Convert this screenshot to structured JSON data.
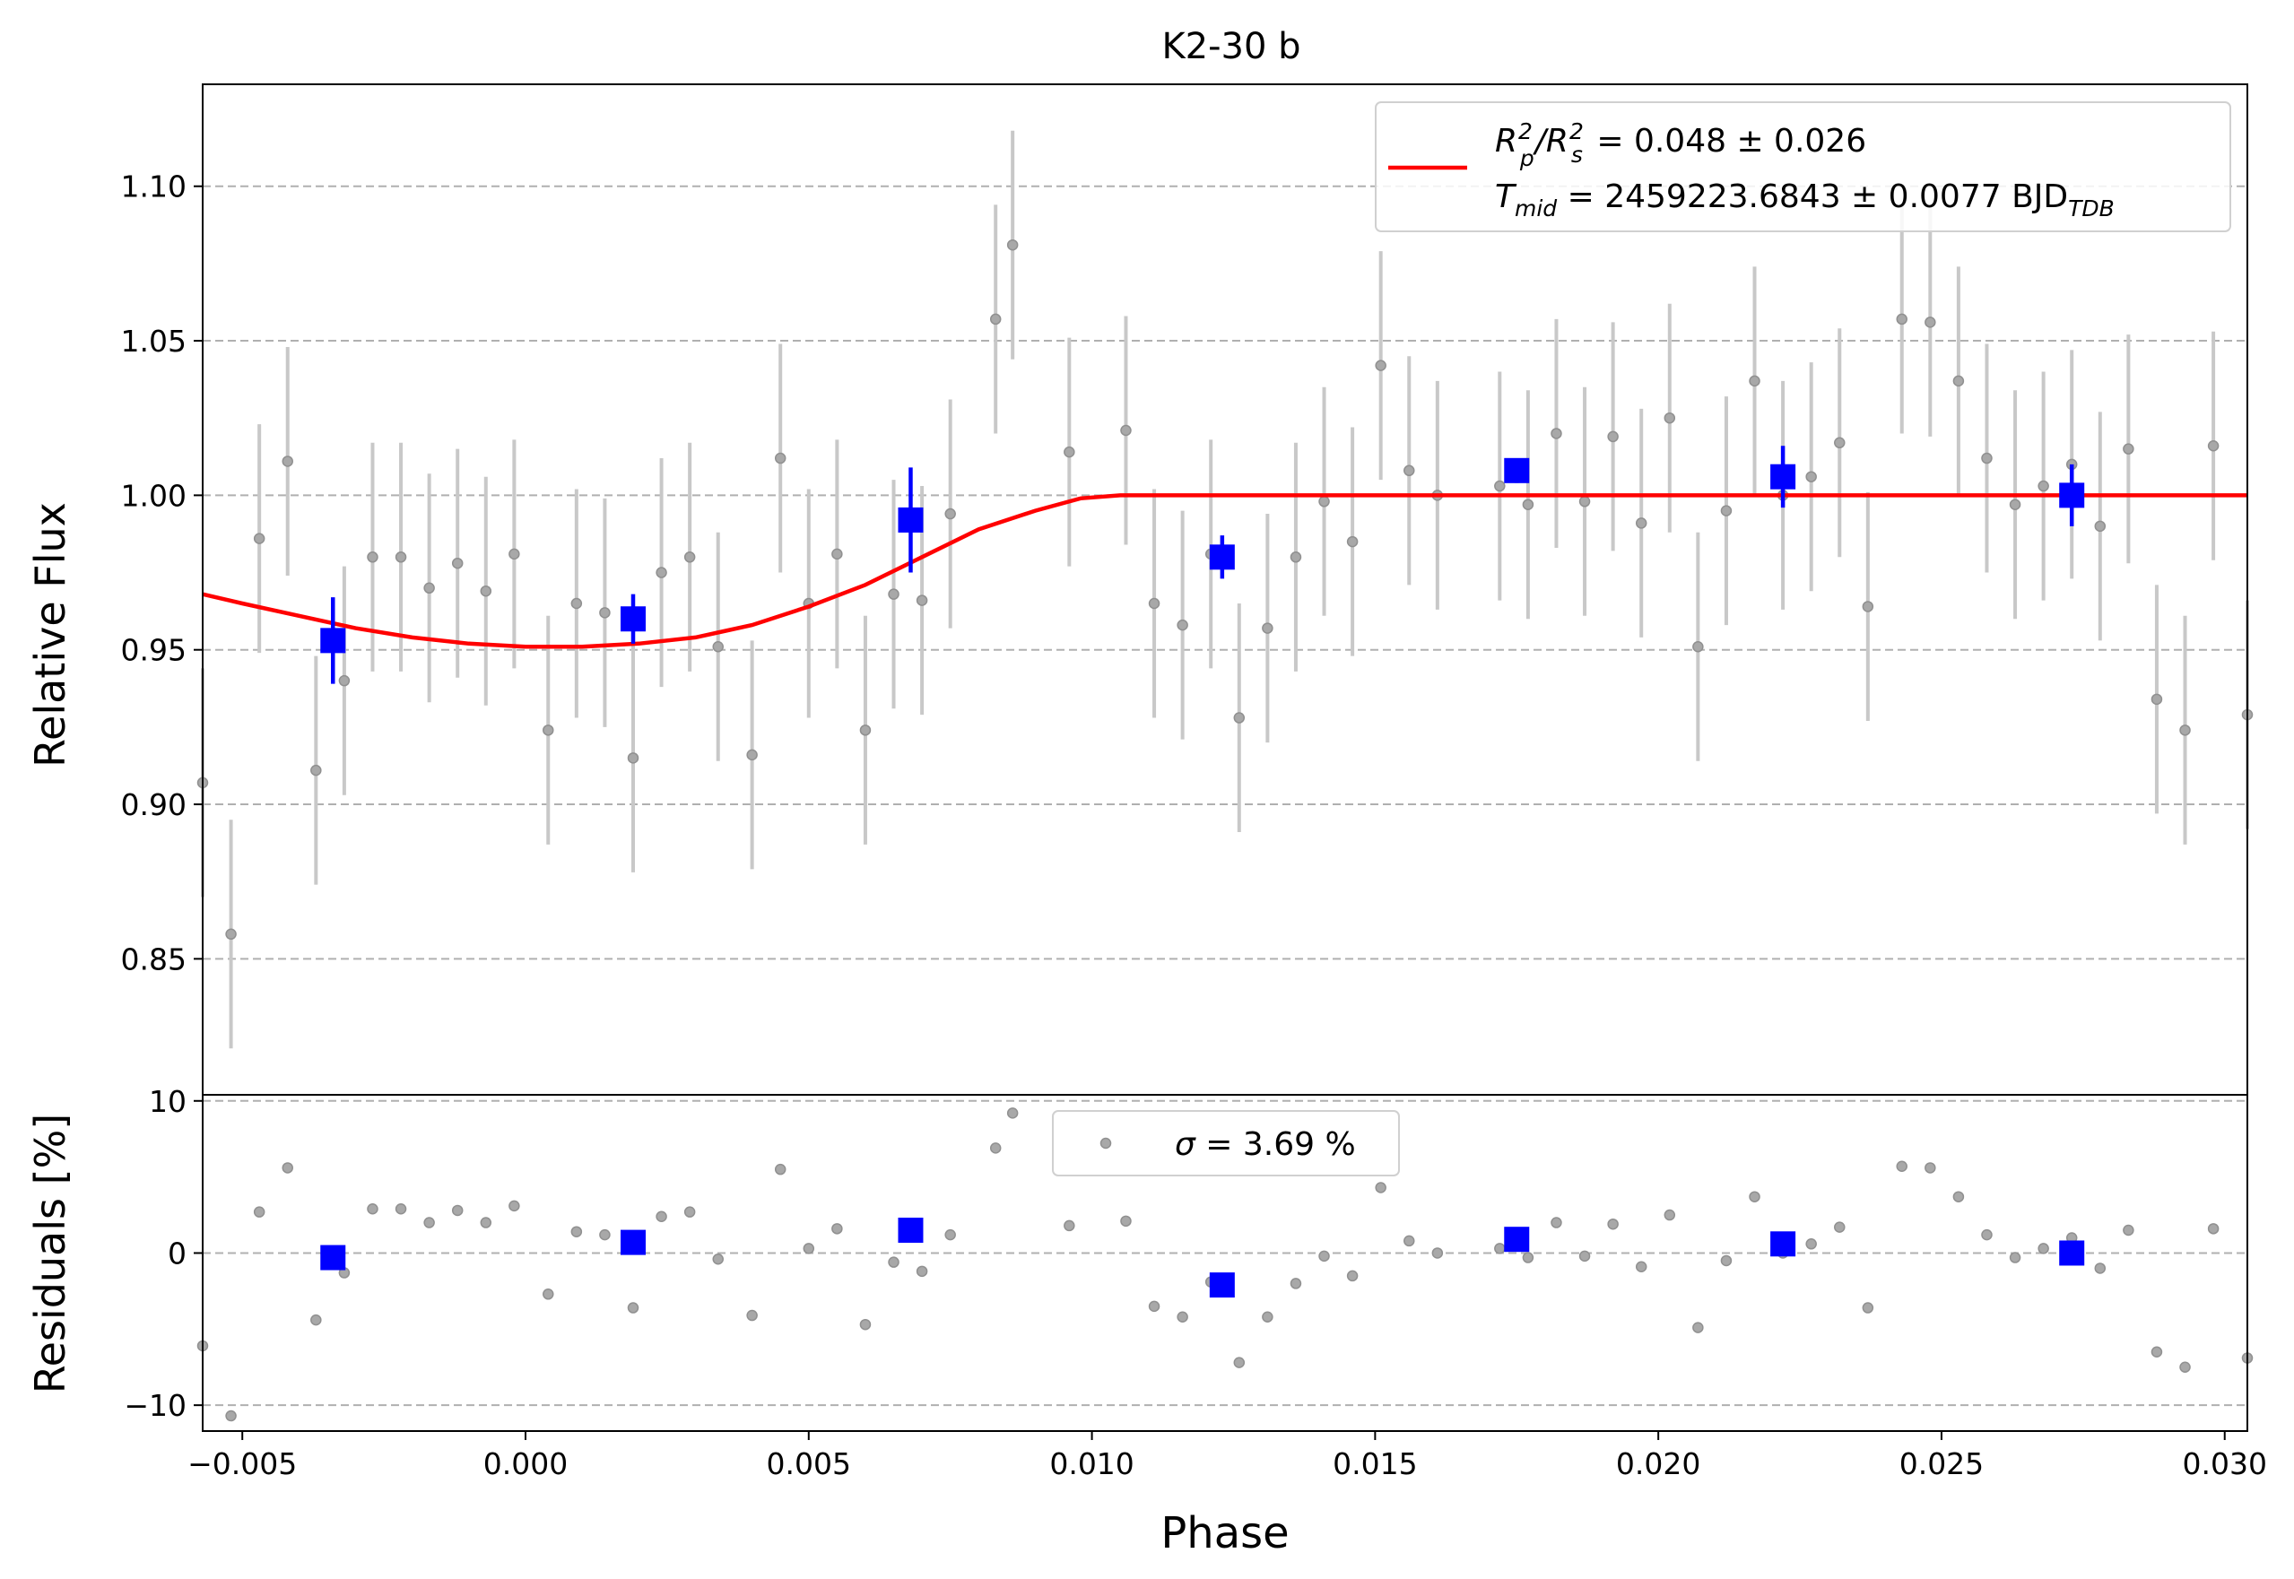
{
  "chart_data": [
    {
      "type": "scatter",
      "title": "K2-30 b",
      "xlabel": "",
      "ylabel": "Relative Flux",
      "xlim": [
        -0.0057,
        0.0304
      ],
      "ylim": [
        0.806,
        1.133
      ],
      "yticks": [
        0.85,
        0.9,
        0.95,
        1.0,
        1.05,
        1.1
      ],
      "ytick_labels": [
        "0.85",
        "0.90",
        "0.95",
        "1.00",
        "1.05",
        "1.10"
      ],
      "grid": "horizontal dashed",
      "legend_placement": "upper right",
      "legend": {
        "line1_parts": [
          "R",
          "p",
          "2",
          "/R",
          "s",
          "2",
          " = 0.048 ± 0.026"
        ],
        "line2_parts": [
          "T",
          "mid",
          " = 2459223.6843 ± 0.0077 BJD",
          "TDB"
        ]
      },
      "series": [
        {
          "kind": "data",
          "color": "#808080",
          "x": [
            -0.0057,
            -0.0052,
            -0.0047,
            -0.0042,
            -0.0037,
            -0.0032,
            -0.0027,
            -0.0022,
            -0.0017,
            -0.0012,
            -0.0007,
            -0.0002,
            0.0004,
            0.0009,
            0.0014,
            0.0019,
            0.0024,
            0.0029,
            0.0034,
            0.004,
            0.0045,
            0.005,
            0.0055,
            0.006,
            0.0065,
            0.007,
            0.0075,
            0.0083,
            0.0086,
            0.0096,
            0.0106,
            0.0111,
            0.0116,
            0.0121,
            0.0126,
            0.0131,
            0.0136,
            0.0141,
            0.0146,
            0.0151,
            0.0156,
            0.0161,
            0.0172,
            0.0177,
            0.0182,
            0.0187,
            0.0192,
            0.0197,
            0.0202,
            0.0207,
            0.0212,
            0.0217,
            0.0222,
            0.0227,
            0.0232,
            0.0237,
            0.0243,
            0.0248,
            0.0253,
            0.0258,
            0.0263,
            0.0268,
            0.0273,
            0.0278,
            0.0283,
            0.0288,
            0.0293,
            0.0298,
            0.0304
          ],
          "y": [
            0.907,
            0.858,
            0.986,
            1.011,
            0.911,
            0.94,
            0.98,
            0.98,
            0.97,
            0.978,
            0.969,
            0.981,
            0.924,
            0.965,
            0.962,
            0.915,
            0.975,
            0.98,
            0.951,
            0.916,
            1.012,
            0.965,
            0.981,
            0.924,
            0.968,
            0.966,
            0.994,
            1.057,
            1.081,
            1.014,
            1.021,
            0.965,
            0.958,
            0.981,
            0.928,
            0.957,
            0.98,
            0.998,
            0.985,
            1.042,
            1.008,
            1.0,
            1.003,
            0.997,
            1.02,
            0.998,
            1.019,
            0.991,
            1.025,
            0.951,
            0.995,
            1.037,
            1.0,
            1.006,
            1.017,
            0.964,
            1.057,
            1.056,
            1.037,
            1.012,
            0.997,
            1.003,
            1.01,
            0.99,
            1.015,
            0.934,
            0.924,
            1.016,
            0.929
          ],
          "yerr": 0.037
        },
        {
          "kind": "binned",
          "color": "#0000ff",
          "x": [
            -0.0034,
            0.0019,
            0.0068,
            0.0123,
            0.0175,
            0.0222,
            0.0273
          ],
          "y": [
            0.953,
            0.96,
            0.992,
            0.98,
            1.008,
            1.006,
            1.0
          ],
          "yerr": [
            0.014,
            0.008,
            0.017,
            0.007,
            0.004,
            0.01,
            0.01
          ]
        },
        {
          "kind": "model",
          "color": "#ff0000",
          "x": [
            -0.0057,
            -0.005,
            -0.004,
            -0.003,
            -0.002,
            -0.001,
            0.0,
            0.001,
            0.002,
            0.003,
            0.0035,
            0.004,
            0.005,
            0.006,
            0.007,
            0.008,
            0.009,
            0.0098,
            0.0105,
            0.012,
            0.015,
            0.02,
            0.025,
            0.0304
          ],
          "y": [
            0.968,
            0.965,
            0.961,
            0.957,
            0.954,
            0.952,
            0.951,
            0.951,
            0.952,
            0.954,
            0.956,
            0.958,
            0.964,
            0.971,
            0.98,
            0.989,
            0.995,
            0.999,
            1.0,
            1.0,
            1.0,
            1.0,
            1.0,
            1.0
          ]
        }
      ]
    },
    {
      "type": "scatter",
      "title": "",
      "xlabel": "Phase",
      "ylabel": "Residuals [%]",
      "xlim": [
        -0.0057,
        0.0304
      ],
      "ylim": [
        -11.7,
        10.4
      ],
      "xticks": [
        -0.005,
        0.0,
        0.005,
        0.01,
        0.015,
        0.02,
        0.025,
        0.03
      ],
      "xtick_labels": [
        "−0.005",
        "0.000",
        "0.005",
        "0.010",
        "0.015",
        "0.020",
        "0.025",
        "0.030"
      ],
      "yticks": [
        -10,
        0,
        10
      ],
      "ytick_labels": [
        "−10",
        "0",
        "10"
      ],
      "grid": "horizontal dashed",
      "legend_placement": "upper center",
      "legend": {
        "label_parts": [
          "σ",
          " = 3.69 %"
        ]
      },
      "series": [
        {
          "kind": "data",
          "color": "#808080",
          "x": [
            -0.0057,
            -0.0052,
            -0.0047,
            -0.0042,
            -0.0037,
            -0.0032,
            -0.0027,
            -0.0022,
            -0.0017,
            -0.0012,
            -0.0007,
            -0.0002,
            0.0004,
            0.0009,
            0.0014,
            0.0019,
            0.0024,
            0.0029,
            0.0034,
            0.004,
            0.0045,
            0.005,
            0.0055,
            0.006,
            0.0065,
            0.007,
            0.0075,
            0.0083,
            0.0086,
            0.0096,
            0.0106,
            0.0111,
            0.0116,
            0.0121,
            0.0126,
            0.0131,
            0.0136,
            0.0141,
            0.0146,
            0.0151,
            0.0156,
            0.0161,
            0.0172,
            0.0177,
            0.0182,
            0.0187,
            0.0192,
            0.0197,
            0.0202,
            0.0207,
            0.0212,
            0.0217,
            0.0222,
            0.0227,
            0.0232,
            0.0237,
            0.0243,
            0.0248,
            0.0253,
            0.0258,
            0.0263,
            0.0268,
            0.0273,
            0.0278,
            0.0283,
            0.0288,
            0.0293,
            0.0298,
            0.0304
          ],
          "y": [
            -6.1,
            -10.7,
            2.7,
            5.6,
            -4.4,
            -1.3,
            2.9,
            2.9,
            2.0,
            2.8,
            2.0,
            3.1,
            -2.7,
            1.4,
            1.2,
            -3.6,
            2.4,
            2.7,
            -0.4,
            -4.1,
            5.5,
            0.3,
            1.6,
            -4.7,
            -0.6,
            -1.2,
            1.2,
            6.9,
            9.2,
            1.8,
            2.1,
            -3.5,
            -4.2,
            -1.9,
            -7.2,
            -4.2,
            -2.0,
            -0.2,
            -1.5,
            4.3,
            0.8,
            0.0,
            0.3,
            -0.3,
            2.0,
            -0.2,
            1.9,
            -0.9,
            2.5,
            -4.9,
            -0.5,
            3.7,
            0.0,
            0.6,
            1.7,
            -3.6,
            5.7,
            5.6,
            3.7,
            1.2,
            -0.3,
            0.3,
            1.0,
            -1.0,
            1.5,
            -6.5,
            -7.5,
            1.6,
            -6.9
          ]
        },
        {
          "kind": "binned",
          "color": "#0000ff",
          "x": [
            -0.0034,
            0.0019,
            0.0068,
            0.0123,
            0.0175,
            0.0222,
            0.0273
          ],
          "y": [
            -0.3,
            0.7,
            1.5,
            -2.1,
            0.9,
            0.6,
            0.0
          ]
        }
      ]
    }
  ]
}
